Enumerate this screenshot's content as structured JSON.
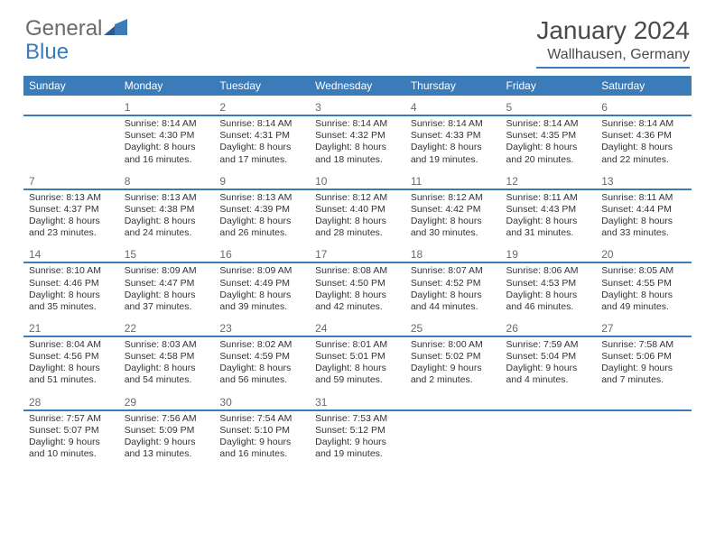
{
  "logo": {
    "text1": "General",
    "text2": "Blue"
  },
  "title": "January 2024",
  "location": "Wallhausen, Germany",
  "colors": {
    "accent": "#3b7bb8",
    "header_text": "#ffffff",
    "body_text": "#333333",
    "title_text": "#4a4a4a",
    "background": "#ffffff"
  },
  "weekdays": [
    "Sunday",
    "Monday",
    "Tuesday",
    "Wednesday",
    "Thursday",
    "Friday",
    "Saturday"
  ],
  "weeks": [
    {
      "nums": [
        "",
        "1",
        "2",
        "3",
        "4",
        "5",
        "6"
      ],
      "cells": [
        "",
        "Sunrise: 8:14 AM\nSunset: 4:30 PM\nDaylight: 8 hours and 16 minutes.",
        "Sunrise: 8:14 AM\nSunset: 4:31 PM\nDaylight: 8 hours and 17 minutes.",
        "Sunrise: 8:14 AM\nSunset: 4:32 PM\nDaylight: 8 hours and 18 minutes.",
        "Sunrise: 8:14 AM\nSunset: 4:33 PM\nDaylight: 8 hours and 19 minutes.",
        "Sunrise: 8:14 AM\nSunset: 4:35 PM\nDaylight: 8 hours and 20 minutes.",
        "Sunrise: 8:14 AM\nSunset: 4:36 PM\nDaylight: 8 hours and 22 minutes."
      ]
    },
    {
      "nums": [
        "7",
        "8",
        "9",
        "10",
        "11",
        "12",
        "13"
      ],
      "cells": [
        "Sunrise: 8:13 AM\nSunset: 4:37 PM\nDaylight: 8 hours and 23 minutes.",
        "Sunrise: 8:13 AM\nSunset: 4:38 PM\nDaylight: 8 hours and 24 minutes.",
        "Sunrise: 8:13 AM\nSunset: 4:39 PM\nDaylight: 8 hours and 26 minutes.",
        "Sunrise: 8:12 AM\nSunset: 4:40 PM\nDaylight: 8 hours and 28 minutes.",
        "Sunrise: 8:12 AM\nSunset: 4:42 PM\nDaylight: 8 hours and 30 minutes.",
        "Sunrise: 8:11 AM\nSunset: 4:43 PM\nDaylight: 8 hours and 31 minutes.",
        "Sunrise: 8:11 AM\nSunset: 4:44 PM\nDaylight: 8 hours and 33 minutes."
      ]
    },
    {
      "nums": [
        "14",
        "15",
        "16",
        "17",
        "18",
        "19",
        "20"
      ],
      "cells": [
        "Sunrise: 8:10 AM\nSunset: 4:46 PM\nDaylight: 8 hours and 35 minutes.",
        "Sunrise: 8:09 AM\nSunset: 4:47 PM\nDaylight: 8 hours and 37 minutes.",
        "Sunrise: 8:09 AM\nSunset: 4:49 PM\nDaylight: 8 hours and 39 minutes.",
        "Sunrise: 8:08 AM\nSunset: 4:50 PM\nDaylight: 8 hours and 42 minutes.",
        "Sunrise: 8:07 AM\nSunset: 4:52 PM\nDaylight: 8 hours and 44 minutes.",
        "Sunrise: 8:06 AM\nSunset: 4:53 PM\nDaylight: 8 hours and 46 minutes.",
        "Sunrise: 8:05 AM\nSunset: 4:55 PM\nDaylight: 8 hours and 49 minutes."
      ]
    },
    {
      "nums": [
        "21",
        "22",
        "23",
        "24",
        "25",
        "26",
        "27"
      ],
      "cells": [
        "Sunrise: 8:04 AM\nSunset: 4:56 PM\nDaylight: 8 hours and 51 minutes.",
        "Sunrise: 8:03 AM\nSunset: 4:58 PM\nDaylight: 8 hours and 54 minutes.",
        "Sunrise: 8:02 AM\nSunset: 4:59 PM\nDaylight: 8 hours and 56 minutes.",
        "Sunrise: 8:01 AM\nSunset: 5:01 PM\nDaylight: 8 hours and 59 minutes.",
        "Sunrise: 8:00 AM\nSunset: 5:02 PM\nDaylight: 9 hours and 2 minutes.",
        "Sunrise: 7:59 AM\nSunset: 5:04 PM\nDaylight: 9 hours and 4 minutes.",
        "Sunrise: 7:58 AM\nSunset: 5:06 PM\nDaylight: 9 hours and 7 minutes."
      ]
    },
    {
      "nums": [
        "28",
        "29",
        "30",
        "31",
        "",
        "",
        ""
      ],
      "cells": [
        "Sunrise: 7:57 AM\nSunset: 5:07 PM\nDaylight: 9 hours and 10 minutes.",
        "Sunrise: 7:56 AM\nSunset: 5:09 PM\nDaylight: 9 hours and 13 minutes.",
        "Sunrise: 7:54 AM\nSunset: 5:10 PM\nDaylight: 9 hours and 16 minutes.",
        "Sunrise: 7:53 AM\nSunset: 5:12 PM\nDaylight: 9 hours and 19 minutes.",
        "",
        "",
        ""
      ]
    }
  ]
}
